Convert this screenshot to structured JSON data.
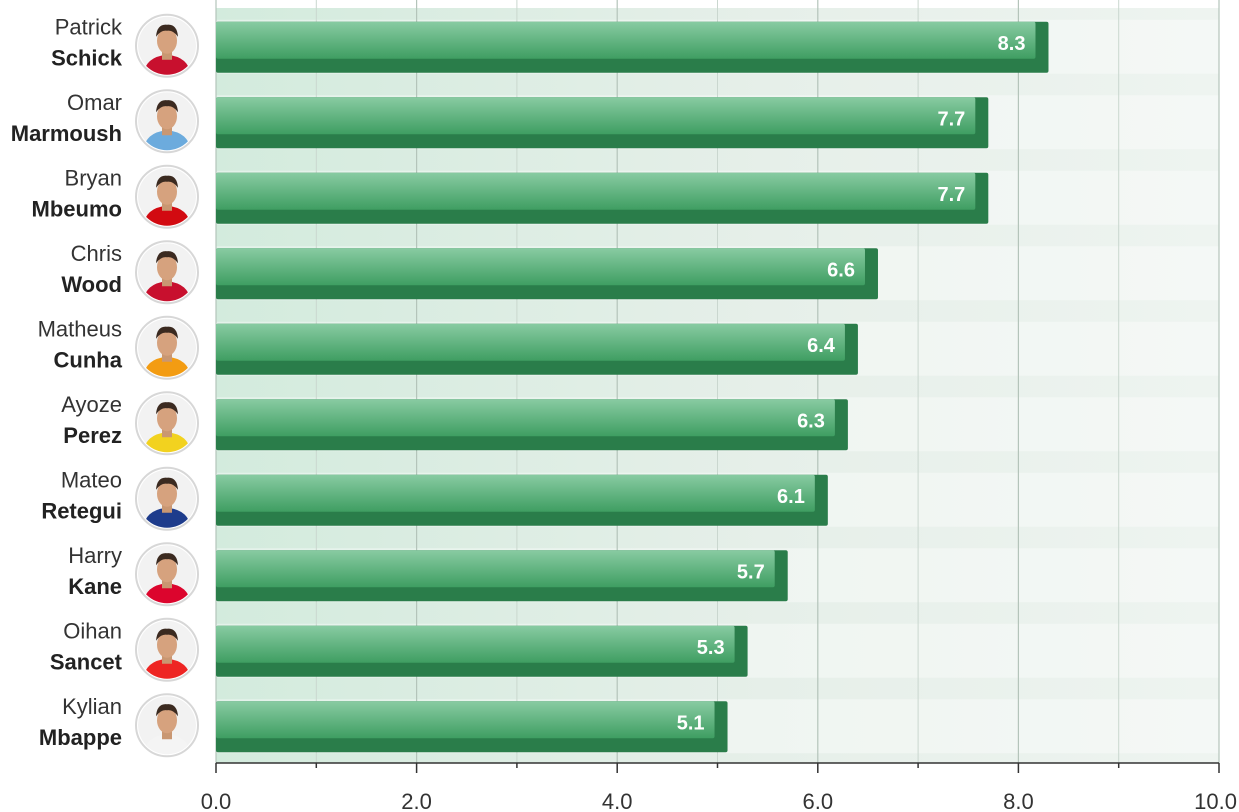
{
  "chart_data": {
    "type": "bar",
    "orientation": "horizontal",
    "title": "",
    "xlabel": "",
    "ylabel": "",
    "xlim": [
      0,
      10
    ],
    "x_ticks": [
      0,
      2,
      4,
      6,
      8,
      10
    ],
    "x_tick_labels": [
      "0.0",
      "2.0",
      "4.0",
      "6.0",
      "8.0",
      "10.0"
    ],
    "grid": true,
    "legend": "none",
    "bar_color": "#3f9e62",
    "bar_dark_color": "#2a7d4a",
    "categories": [
      {
        "first": "Patrick",
        "last": "Schick",
        "value": 8.3,
        "label": "8.3",
        "avatar": "player-photo-icon",
        "kit": "#c8102e"
      },
      {
        "first": "Omar",
        "last": "Marmoush",
        "value": 7.7,
        "label": "7.7",
        "avatar": "player-photo-icon",
        "kit": "#6cabdd"
      },
      {
        "first": "Bryan",
        "last": "Mbeumo",
        "value": 7.7,
        "label": "7.7",
        "avatar": "player-photo-icon",
        "kit": "#d20a11"
      },
      {
        "first": "Chris",
        "last": "Wood",
        "value": 6.6,
        "label": "6.6",
        "avatar": "player-photo-icon",
        "kit": "#c8102e"
      },
      {
        "first": "Matheus",
        "last": "Cunha",
        "value": 6.4,
        "label": "6.4",
        "avatar": "player-photo-icon",
        "kit": "#f39c12"
      },
      {
        "first": "Ayoze",
        "last": "Perez",
        "value": 6.3,
        "label": "6.3",
        "avatar": "player-photo-icon",
        "kit": "#f2d21f"
      },
      {
        "first": "Mateo",
        "last": "Retegui",
        "value": 6.1,
        "label": "6.1",
        "avatar": "player-photo-icon",
        "kit": "#1e3c8c"
      },
      {
        "first": "Harry",
        "last": "Kane",
        "value": 5.7,
        "label": "5.7",
        "avatar": "player-photo-icon",
        "kit": "#dc052d"
      },
      {
        "first": "Oihan",
        "last": "Sancet",
        "value": 5.3,
        "label": "5.3",
        "avatar": "player-photo-icon",
        "kit": "#ee2523"
      },
      {
        "first": "Kylian",
        "last": "Mbappe",
        "value": 5.1,
        "label": "5.1",
        "avatar": "player-photo-icon",
        "kit": "#f4f4f4"
      }
    ]
  }
}
